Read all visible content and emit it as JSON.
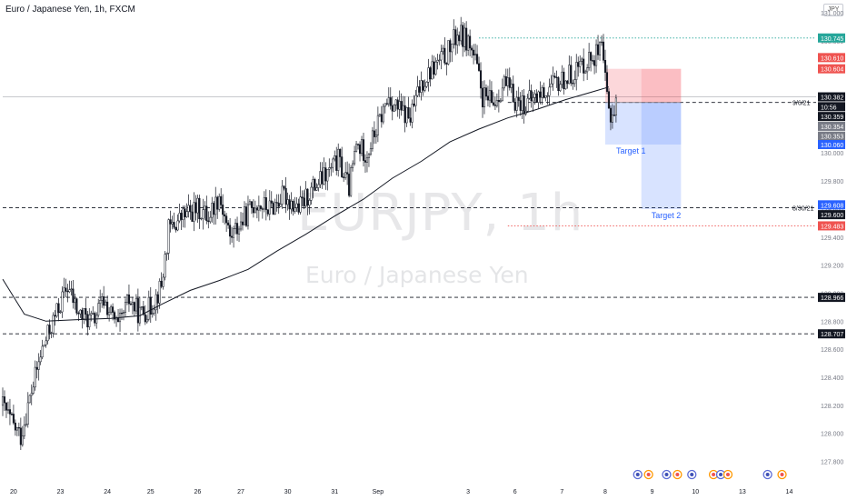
{
  "header": {
    "title": "Euro / Japanese Yen, 1h, FXCM",
    "currency": "JPY"
  },
  "watermark": {
    "symbol": "EURJPY, 1h",
    "name": "Euro / Japanese Yen"
  },
  "colors": {
    "candle": "#131722",
    "ma": "#131722",
    "green": "#26a69a",
    "red": "#ef5350",
    "blue": "#2962ff",
    "stop_zone": "rgba(242,54,69,0.20)",
    "target_zone": "rgba(41,98,255,0.18)"
  },
  "chart_data": {
    "type": "candlestick",
    "ylim": [
      127.7,
      131.0
    ],
    "ma_period_hint": "moving average",
    "x_ticks": [
      {
        "label": "20",
        "i": 3
      },
      {
        "label": "23",
        "i": 16
      },
      {
        "label": "24",
        "i": 29
      },
      {
        "label": "25",
        "i": 41
      },
      {
        "label": "26",
        "i": 54
      },
      {
        "label": "27",
        "i": 66
      },
      {
        "label": "30",
        "i": 79
      },
      {
        "label": "31",
        "i": 92
      },
      {
        "label": "Sep",
        "i": 104
      },
      {
        "label": "3",
        "i": 129
      },
      {
        "label": "6",
        "i": 142
      },
      {
        "label": "7",
        "i": 155
      },
      {
        "label": "8",
        "i": 167
      },
      {
        "label": "9",
        "i": 180
      },
      {
        "label": "10",
        "i": 192
      },
      {
        "label": "13",
        "i": 205
      },
      {
        "label": "14",
        "i": 218
      }
    ],
    "y_ticks": [
      127.8,
      128.0,
      128.2,
      128.4,
      128.6,
      128.8,
      129.0,
      129.2,
      129.4,
      129.6,
      129.8,
      130.0,
      130.2,
      130.4,
      130.6,
      130.8,
      131.0
    ],
    "anchors": [
      [
        0,
        128.2
      ],
      [
        3,
        128.05
      ],
      [
        5,
        127.98
      ],
      [
        8,
        128.3
      ],
      [
        11,
        128.6
      ],
      [
        14,
        128.8
      ],
      [
        18,
        129.05
      ],
      [
        21,
        128.85
      ],
      [
        25,
        128.8
      ],
      [
        28,
        128.95
      ],
      [
        32,
        128.75
      ],
      [
        35,
        128.95
      ],
      [
        38,
        128.85
      ],
      [
        41,
        128.9
      ],
      [
        44,
        129.05
      ],
      [
        46,
        129.45
      ],
      [
        50,
        129.55
      ],
      [
        54,
        129.6
      ],
      [
        57,
        129.55
      ],
      [
        60,
        129.7
      ],
      [
        63,
        129.4
      ],
      [
        66,
        129.5
      ],
      [
        70,
        129.65
      ],
      [
        74,
        129.6
      ],
      [
        78,
        129.7
      ],
      [
        82,
        129.6
      ],
      [
        86,
        129.75
      ],
      [
        90,
        129.85
      ],
      [
        93,
        129.95
      ],
      [
        96,
        129.75
      ],
      [
        98,
        130.05
      ],
      [
        101,
        130.0
      ],
      [
        104,
        130.2
      ],
      [
        107,
        130.4
      ],
      [
        110,
        130.3
      ],
      [
        113,
        130.25
      ],
      [
        116,
        130.5
      ],
      [
        119,
        130.6
      ],
      [
        123,
        130.7
      ],
      [
        126,
        130.85
      ],
      [
        129,
        130.8
      ],
      [
        131,
        130.65
      ],
      [
        133,
        130.4
      ],
      [
        136,
        130.35
      ],
      [
        139,
        130.5
      ],
      [
        142,
        130.38
      ],
      [
        145,
        130.35
      ],
      [
        148,
        130.4
      ],
      [
        151,
        130.45
      ],
      [
        154,
        130.5
      ],
      [
        157,
        130.55
      ],
      [
        160,
        130.62
      ],
      [
        164,
        130.7
      ],
      [
        166,
        130.72
      ],
      [
        168,
        130.3
      ],
      [
        169,
        130.28
      ],
      [
        170,
        130.36
      ]
    ],
    "ma_points": [
      [
        0,
        129.1
      ],
      [
        6,
        128.85
      ],
      [
        12,
        128.8
      ],
      [
        20,
        128.81
      ],
      [
        30,
        128.82
      ],
      [
        38,
        128.84
      ],
      [
        44,
        128.92
      ],
      [
        52,
        129.02
      ],
      [
        60,
        129.09
      ],
      [
        68,
        129.17
      ],
      [
        76,
        129.3
      ],
      [
        84,
        129.42
      ],
      [
        92,
        129.55
      ],
      [
        100,
        129.67
      ],
      [
        108,
        129.82
      ],
      [
        116,
        129.94
      ],
      [
        124,
        130.08
      ],
      [
        132,
        130.17
      ],
      [
        140,
        130.25
      ],
      [
        148,
        130.31
      ],
      [
        156,
        130.38
      ],
      [
        164,
        130.44
      ],
      [
        168,
        130.47
      ]
    ],
    "horizontal_lines": [
      {
        "price": 130.82,
        "color": "green",
        "style": "dotted",
        "from_i": 132
      },
      {
        "price": 130.4,
        "color": "gray",
        "style": "solid",
        "from_i": 0
      },
      {
        "price": 130.36,
        "color": "dark",
        "style": "dashed",
        "from_i": 140,
        "label": "9/6/21"
      },
      {
        "price": 129.61,
        "color": "dark",
        "style": "dashed",
        "from_i": 0,
        "label": "8/30/21"
      },
      {
        "price": 129.48,
        "color": "red",
        "style": "dotted",
        "from_i": 140
      },
      {
        "price": 128.97,
        "color": "dark",
        "style": "dashed",
        "from_i": 0
      },
      {
        "price": 128.71,
        "color": "dark",
        "style": "dashed",
        "from_i": 0
      }
    ],
    "positions": [
      {
        "entry": 130.36,
        "stop": 130.6,
        "target": 130.06,
        "start_i": 167,
        "mid_i": 177,
        "end_i": 188,
        "label": "Target 1"
      },
      {
        "entry": 130.36,
        "stop": 130.6,
        "target": 129.6,
        "start_i": 177,
        "end_i": 188,
        "label": "Target 2"
      }
    ],
    "price_labels": [
      {
        "text": "130.745",
        "price": 130.82,
        "bg": "#26a69a"
      },
      {
        "text": "130.610",
        "price": 130.68,
        "bg": "#ef5350"
      },
      {
        "text": "130.604",
        "price": 130.6,
        "bg": "#ef5350"
      },
      {
        "text": "130.382",
        "price": 130.4,
        "bg": "#131722"
      },
      {
        "text": "10:56",
        "price": 130.33,
        "bg": "#131722"
      },
      {
        "text": "130.359",
        "price": 130.26,
        "bg": "#131722"
      },
      {
        "text": "130.354",
        "price": 130.19,
        "bg": "#787b86"
      },
      {
        "text": "130.353",
        "price": 130.12,
        "bg": "#787b86"
      },
      {
        "text": "130.060",
        "price": 130.06,
        "bg": "#2962ff"
      },
      {
        "text": "129.608",
        "price": 129.63,
        "bg": "#2962ff"
      },
      {
        "text": "129.600",
        "price": 129.56,
        "bg": "#131722"
      },
      {
        "text": "129.483",
        "price": 129.48,
        "bg": "#ef5350"
      },
      {
        "text": "128.966",
        "price": 128.97,
        "bg": "#131722"
      },
      {
        "text": "128.707",
        "price": 128.71,
        "bg": "#131722"
      }
    ],
    "event_markers": [
      176,
      179,
      184,
      187,
      191,
      197,
      199,
      201,
      212,
      216
    ]
  }
}
